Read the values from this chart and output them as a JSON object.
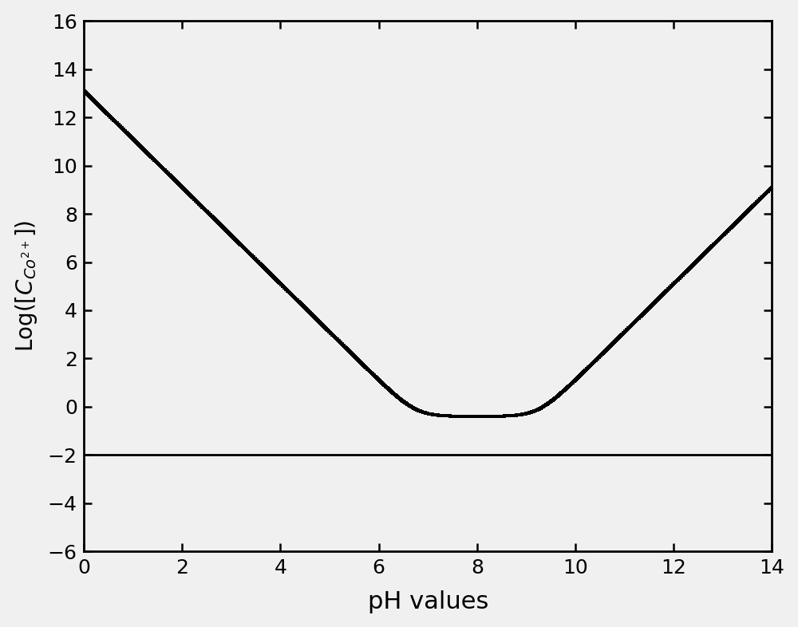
{
  "title": "",
  "xlabel": "pH values",
  "xlim": [
    0,
    14
  ],
  "ylim": [
    -6,
    16
  ],
  "yticks": [
    -6,
    -4,
    -2,
    0,
    2,
    4,
    6,
    8,
    10,
    12,
    14,
    16
  ],
  "xticks": [
    0,
    2,
    4,
    6,
    8,
    10,
    12,
    14
  ],
  "hline_y": -2,
  "hline_color": "#000000",
  "curve_color": "#000000",
  "background_color": "#f0f0f0",
  "xlabel_fontsize": 22,
  "ylabel_fontsize": 20,
  "tick_fontsize": 18,
  "figsize": [
    10.0,
    7.86
  ],
  "dpi": 100,
  "pKsp": 14.9,
  "beta1": 4.0,
  "beta2": 9.2,
  "beta3": 17.5,
  "beta4": 24.0
}
